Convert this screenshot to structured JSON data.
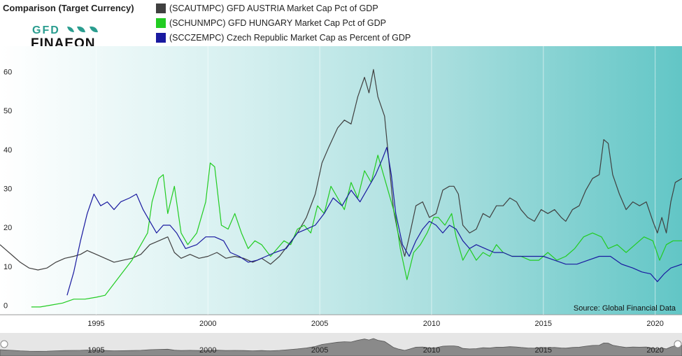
{
  "header": {
    "title": "Comparison (Target Currency)",
    "logo_top": "GFD",
    "logo_bottom": "FINAEON"
  },
  "colors": {
    "austria": "#404040",
    "hungary": "#22cc22",
    "czech": "#1a1aa0",
    "bg_left": "#ffffff",
    "bg_right": "#66c8c8",
    "logo_green": "#2a9d8f"
  },
  "chart_data": {
    "type": "line",
    "source": "Source: Global Financial Data",
    "xlim": [
      1990.7,
      2021.2
    ],
    "ylim": [
      -1,
      68
    ],
    "x_ticks": [
      1995,
      2000,
      2005,
      2010,
      2015,
      2020
    ],
    "y_ticks": [
      0,
      10,
      20,
      30,
      40,
      50,
      60
    ],
    "series": [
      {
        "name": "(SCAUTMPC) GFD AUSTRIA Market Cap Pct of GDP",
        "key": "austria",
        "points": [
          [
            1990.7,
            17
          ],
          [
            1991.0,
            15.5
          ],
          [
            1991.3,
            14
          ],
          [
            1991.6,
            12.5
          ],
          [
            1992.0,
            11
          ],
          [
            1992.4,
            10.5
          ],
          [
            1992.8,
            11
          ],
          [
            1993.2,
            12.5
          ],
          [
            1993.6,
            13.5
          ],
          [
            1994.0,
            14
          ],
          [
            1994.3,
            14.5
          ],
          [
            1994.6,
            15.5
          ],
          [
            1995.0,
            14.5
          ],
          [
            1995.4,
            13.5
          ],
          [
            1995.8,
            12.5
          ],
          [
            1996.2,
            13
          ],
          [
            1996.6,
            13.5
          ],
          [
            1997.0,
            14.5
          ],
          [
            1997.4,
            17
          ],
          [
            1997.8,
            18
          ],
          [
            1998.2,
            19
          ],
          [
            1998.5,
            15
          ],
          [
            1998.8,
            13.5
          ],
          [
            1999.2,
            14.5
          ],
          [
            1999.6,
            13.5
          ],
          [
            2000.0,
            14
          ],
          [
            2000.4,
            15
          ],
          [
            2000.8,
            13.5
          ],
          [
            2001.2,
            14
          ],
          [
            2001.6,
            13.5
          ],
          [
            2002.0,
            12.5
          ],
          [
            2002.4,
            13.5
          ],
          [
            2002.8,
            12
          ],
          [
            2003.2,
            14
          ],
          [
            2003.6,
            17
          ],
          [
            2004.0,
            20
          ],
          [
            2004.4,
            24
          ],
          [
            2004.8,
            30
          ],
          [
            2005.1,
            38
          ],
          [
            2005.4,
            42
          ],
          [
            2005.8,
            47
          ],
          [
            2006.1,
            49
          ],
          [
            2006.4,
            48
          ],
          [
            2006.7,
            55
          ],
          [
            2007.0,
            60
          ],
          [
            2007.2,
            56
          ],
          [
            2007.4,
            62
          ],
          [
            2007.6,
            55
          ],
          [
            2007.9,
            50
          ],
          [
            2008.1,
            38
          ],
          [
            2008.3,
            26
          ],
          [
            2008.5,
            20
          ],
          [
            2008.8,
            14
          ],
          [
            2009.0,
            19
          ],
          [
            2009.3,
            27
          ],
          [
            2009.6,
            28
          ],
          [
            2009.9,
            24
          ],
          [
            2010.2,
            25
          ],
          [
            2010.5,
            31
          ],
          [
            2010.8,
            32
          ],
          [
            2011.0,
            32
          ],
          [
            2011.2,
            30
          ],
          [
            2011.4,
            22
          ],
          [
            2011.7,
            20
          ],
          [
            2012.0,
            21
          ],
          [
            2012.3,
            25
          ],
          [
            2012.6,
            24
          ],
          [
            2012.9,
            27
          ],
          [
            2013.2,
            27
          ],
          [
            2013.5,
            29
          ],
          [
            2013.8,
            28
          ],
          [
            2014.0,
            26
          ],
          [
            2014.3,
            24
          ],
          [
            2014.6,
            23
          ],
          [
            2014.9,
            26
          ],
          [
            2015.2,
            25
          ],
          [
            2015.5,
            26
          ],
          [
            2015.8,
            24
          ],
          [
            2016.0,
            23
          ],
          [
            2016.3,
            26
          ],
          [
            2016.6,
            27
          ],
          [
            2016.9,
            31
          ],
          [
            2017.2,
            34
          ],
          [
            2017.5,
            35
          ],
          [
            2017.7,
            44
          ],
          [
            2017.9,
            43
          ],
          [
            2018.1,
            35
          ],
          [
            2018.4,
            30
          ],
          [
            2018.7,
            26
          ],
          [
            2019.0,
            28
          ],
          [
            2019.3,
            27
          ],
          [
            2019.6,
            28
          ],
          [
            2019.9,
            23
          ],
          [
            2020.1,
            20
          ],
          [
            2020.3,
            24
          ],
          [
            2020.5,
            20
          ],
          [
            2020.7,
            28
          ],
          [
            2020.9,
            33
          ],
          [
            2021.2,
            34
          ]
        ]
      },
      {
        "name": "(SCHUNMPC) GFD HUNGARY Market Cap Pct of GDP",
        "key": "hungary",
        "points": [
          [
            1992.1,
            1
          ],
          [
            1992.5,
            1
          ],
          [
            1993.0,
            1.5
          ],
          [
            1993.5,
            2
          ],
          [
            1994.0,
            3
          ],
          [
            1994.5,
            3
          ],
          [
            1995.0,
            3.5
          ],
          [
            1995.4,
            4
          ],
          [
            1995.8,
            7
          ],
          [
            1996.2,
            10
          ],
          [
            1996.6,
            13
          ],
          [
            1997.0,
            17
          ],
          [
            1997.3,
            20
          ],
          [
            1997.5,
            28
          ],
          [
            1997.8,
            34
          ],
          [
            1998.0,
            35
          ],
          [
            1998.2,
            25
          ],
          [
            1998.5,
            32
          ],
          [
            1998.8,
            20
          ],
          [
            1999.1,
            17
          ],
          [
            1999.5,
            20
          ],
          [
            1999.9,
            28
          ],
          [
            2000.1,
            38
          ],
          [
            2000.3,
            37
          ],
          [
            2000.6,
            22
          ],
          [
            2000.9,
            21
          ],
          [
            2001.2,
            25
          ],
          [
            2001.5,
            20
          ],
          [
            2001.8,
            16
          ],
          [
            2002.1,
            18
          ],
          [
            2002.4,
            17
          ],
          [
            2002.8,
            14
          ],
          [
            2003.1,
            16
          ],
          [
            2003.4,
            18
          ],
          [
            2003.7,
            17
          ],
          [
            2004.0,
            21
          ],
          [
            2004.3,
            22
          ],
          [
            2004.6,
            20
          ],
          [
            2004.9,
            27
          ],
          [
            2005.2,
            25
          ],
          [
            2005.5,
            32
          ],
          [
            2005.8,
            29
          ],
          [
            2006.1,
            26
          ],
          [
            2006.4,
            33
          ],
          [
            2006.7,
            29
          ],
          [
            2007.0,
            36
          ],
          [
            2007.3,
            33
          ],
          [
            2007.6,
            40
          ],
          [
            2007.9,
            34
          ],
          [
            2008.2,
            28
          ],
          [
            2008.4,
            24
          ],
          [
            2008.6,
            16
          ],
          [
            2008.9,
            8
          ],
          [
            2009.2,
            15
          ],
          [
            2009.5,
            17
          ],
          [
            2009.8,
            20
          ],
          [
            2010.1,
            24
          ],
          [
            2010.3,
            24
          ],
          [
            2010.6,
            22
          ],
          [
            2010.9,
            25
          ],
          [
            2011.1,
            19
          ],
          [
            2011.4,
            13
          ],
          [
            2011.7,
            16
          ],
          [
            2012.0,
            13
          ],
          [
            2012.3,
            15
          ],
          [
            2012.6,
            14
          ],
          [
            2012.9,
            17
          ],
          [
            2013.2,
            15
          ],
          [
            2013.6,
            14
          ],
          [
            2014.0,
            14
          ],
          [
            2014.4,
            13
          ],
          [
            2014.8,
            13
          ],
          [
            2015.2,
            15
          ],
          [
            2015.6,
            13
          ],
          [
            2016.0,
            14
          ],
          [
            2016.4,
            16
          ],
          [
            2016.8,
            19
          ],
          [
            2017.2,
            20
          ],
          [
            2017.6,
            19
          ],
          [
            2017.9,
            16
          ],
          [
            2018.3,
            17
          ],
          [
            2018.7,
            15
          ],
          [
            2019.1,
            17
          ],
          [
            2019.5,
            19
          ],
          [
            2019.9,
            18
          ],
          [
            2020.2,
            13
          ],
          [
            2020.5,
            17
          ],
          [
            2020.8,
            18
          ],
          [
            2021.2,
            18
          ]
        ]
      },
      {
        "name": "(SCCZEMPC) Czech Republic Market Cap as Percent of GDP",
        "key": "czech",
        "points": [
          [
            1993.7,
            4
          ],
          [
            1994.0,
            10
          ],
          [
            1994.3,
            18
          ],
          [
            1994.6,
            25
          ],
          [
            1994.9,
            30
          ],
          [
            1995.2,
            27
          ],
          [
            1995.5,
            28
          ],
          [
            1995.8,
            26
          ],
          [
            1996.1,
            28
          ],
          [
            1996.5,
            29
          ],
          [
            1996.8,
            30
          ],
          [
            1997.1,
            26
          ],
          [
            1997.4,
            23
          ],
          [
            1997.7,
            20
          ],
          [
            1998.0,
            22
          ],
          [
            1998.3,
            22
          ],
          [
            1998.6,
            20
          ],
          [
            1999.0,
            16
          ],
          [
            1999.5,
            17
          ],
          [
            1999.9,
            19
          ],
          [
            2000.3,
            19
          ],
          [
            2000.7,
            18
          ],
          [
            2001.0,
            15
          ],
          [
            2001.4,
            14
          ],
          [
            2001.8,
            12.5
          ],
          [
            2002.2,
            13
          ],
          [
            2002.6,
            14
          ],
          [
            2003.0,
            15
          ],
          [
            2003.5,
            16
          ],
          [
            2004.0,
            20
          ],
          [
            2004.4,
            21
          ],
          [
            2004.8,
            22
          ],
          [
            2005.2,
            25
          ],
          [
            2005.6,
            29
          ],
          [
            2006.0,
            27
          ],
          [
            2006.4,
            31
          ],
          [
            2006.8,
            28
          ],
          [
            2007.2,
            32
          ],
          [
            2007.5,
            35
          ],
          [
            2007.8,
            39
          ],
          [
            2008.0,
            42
          ],
          [
            2008.2,
            35
          ],
          [
            2008.4,
            25
          ],
          [
            2008.7,
            17
          ],
          [
            2009.0,
            14
          ],
          [
            2009.3,
            18
          ],
          [
            2009.6,
            21
          ],
          [
            2009.9,
            23
          ],
          [
            2010.2,
            22
          ],
          [
            2010.5,
            20
          ],
          [
            2010.8,
            22
          ],
          [
            2011.1,
            21
          ],
          [
            2011.4,
            18
          ],
          [
            2011.7,
            16
          ],
          [
            2012.0,
            17
          ],
          [
            2012.4,
            16
          ],
          [
            2012.8,
            15
          ],
          [
            2013.2,
            15
          ],
          [
            2013.6,
            14
          ],
          [
            2014.0,
            14
          ],
          [
            2014.5,
            14
          ],
          [
            2015.0,
            14
          ],
          [
            2015.5,
            13
          ],
          [
            2016.0,
            12
          ],
          [
            2016.5,
            12
          ],
          [
            2017.0,
            13
          ],
          [
            2017.5,
            14
          ],
          [
            2018.0,
            14
          ],
          [
            2018.5,
            12
          ],
          [
            2019.0,
            11
          ],
          [
            2019.4,
            10
          ],
          [
            2019.8,
            9.5
          ],
          [
            2020.1,
            7.5
          ],
          [
            2020.4,
            9.5
          ],
          [
            2020.7,
            11
          ],
          [
            2021.2,
            12
          ]
        ]
      }
    ]
  }
}
